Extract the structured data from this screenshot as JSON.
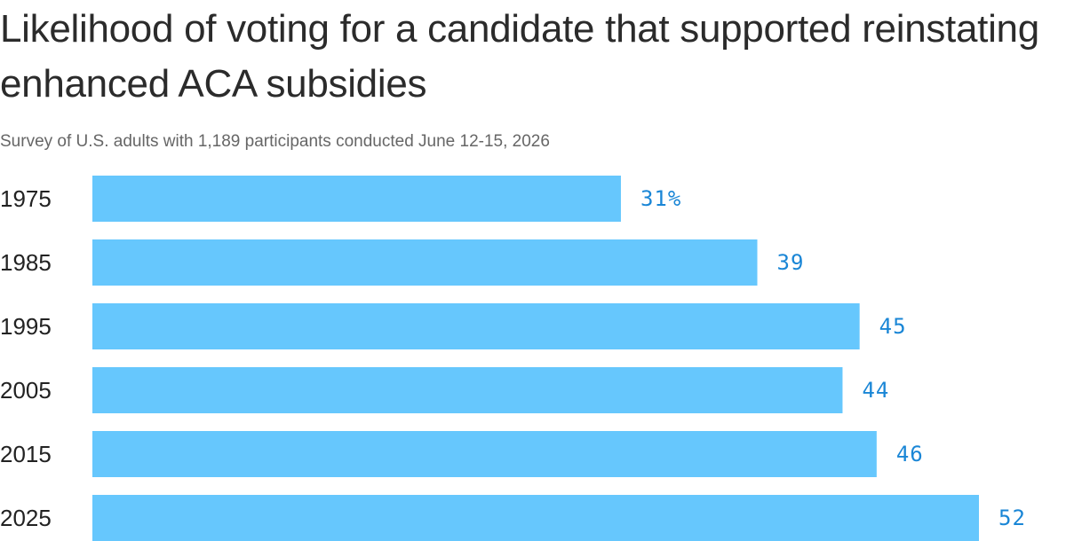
{
  "title": "Likelihood of voting for a candidate that supported reinstating enhanced ACA subsidies",
  "subtitle": "Survey of U.S. adults with 1,189 participants conducted June 12-15, 2026",
  "colors": {
    "bar": "#66c7fd",
    "value_label": "#1a86d6",
    "category_label": "#222222"
  },
  "chart_data": {
    "type": "bar",
    "orientation": "horizontal",
    "categories": [
      "1975",
      "1985",
      "1995",
      "2005",
      "2015",
      "2025"
    ],
    "values": [
      31,
      39,
      45,
      44,
      46,
      52
    ],
    "value_labels": [
      "31%",
      "39",
      "45",
      "44",
      "46",
      "52"
    ],
    "title": "Likelihood of voting for a candidate that supported reinstating enhanced ACA subsidies",
    "subtitle": "Survey of U.S. adults with 1,189 participants conducted June 12-15, 2026",
    "xlabel": "",
    "ylabel": "",
    "xlim": [
      0,
      52
    ],
    "grid": false,
    "legend": "none"
  }
}
